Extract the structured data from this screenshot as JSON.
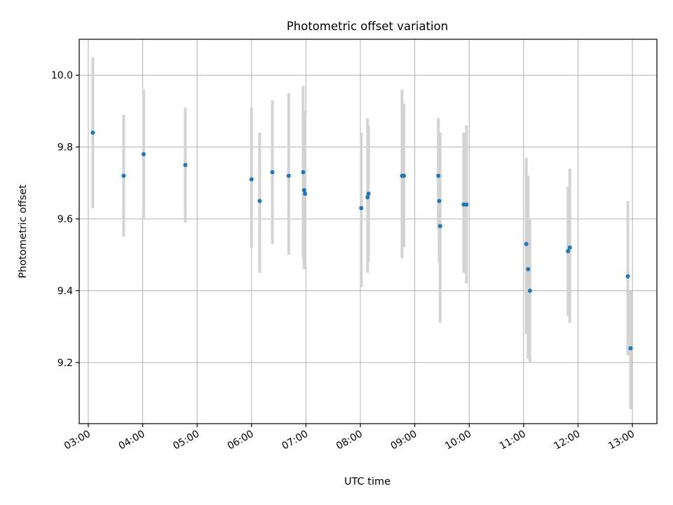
{
  "chart_data": {
    "type": "scatter",
    "title": "Photometric offset variation",
    "xlabel": "UTC time",
    "ylabel": "Photometric offset",
    "xlim": [
      "02:50",
      "13:27"
    ],
    "ylim": [
      9.03,
      10.1
    ],
    "x_ticks": [
      "03:00",
      "04:00",
      "05:00",
      "06:00",
      "07:00",
      "08:00",
      "09:00",
      "10:00",
      "11:00",
      "12:00",
      "13:00"
    ],
    "y_ticks": [
      9.2,
      9.4,
      9.6,
      9.8,
      10.0
    ],
    "y_tick_labels": [
      "9.2",
      "9.4",
      "9.6",
      "9.8",
      "10.0"
    ],
    "grid": true,
    "marker_color": "#1f77b4",
    "errorbar_color": "#d3d3d3",
    "points": [
      {
        "t": "03:05",
        "y": 9.84,
        "lo": 9.63,
        "hi": 10.05
      },
      {
        "t": "03:39",
        "y": 9.72,
        "lo": 9.55,
        "hi": 9.89
      },
      {
        "t": "04:01",
        "y": 9.78,
        "lo": 9.6,
        "hi": 9.96
      },
      {
        "t": "04:47",
        "y": 9.75,
        "lo": 9.59,
        "hi": 9.91
      },
      {
        "t": "06:00",
        "y": 9.71,
        "lo": 9.52,
        "hi": 9.91
      },
      {
        "t": "06:09",
        "y": 9.65,
        "lo": 9.45,
        "hi": 9.84
      },
      {
        "t": "06:23",
        "y": 9.73,
        "lo": 9.53,
        "hi": 9.93
      },
      {
        "t": "06:41",
        "y": 9.72,
        "lo": 9.5,
        "hi": 9.95
      },
      {
        "t": "06:57",
        "y": 9.73,
        "lo": 9.49,
        "hi": 9.97
      },
      {
        "t": "06:58",
        "y": 9.68,
        "lo": 9.46,
        "hi": 9.9
      },
      {
        "t": "06:59",
        "y": 9.67,
        "lo": 9.47,
        "hi": 9.89
      },
      {
        "t": "08:01",
        "y": 9.63,
        "lo": 9.41,
        "hi": 9.84
      },
      {
        "t": "08:08",
        "y": 9.66,
        "lo": 9.45,
        "hi": 9.88
      },
      {
        "t": "08:09",
        "y": 9.67,
        "lo": 9.48,
        "hi": 9.86
      },
      {
        "t": "08:46",
        "y": 9.72,
        "lo": 9.49,
        "hi": 9.96
      },
      {
        "t": "08:48",
        "y": 9.72,
        "lo": 9.52,
        "hi": 9.92
      },
      {
        "t": "09:26",
        "y": 9.72,
        "lo": 9.57,
        "hi": 9.88
      },
      {
        "t": "09:27",
        "y": 9.65,
        "lo": 9.48,
        "hi": 9.83
      },
      {
        "t": "09:28",
        "y": 9.58,
        "lo": 9.31,
        "hi": 9.84
      },
      {
        "t": "09:54",
        "y": 9.64,
        "lo": 9.45,
        "hi": 9.84
      },
      {
        "t": "09:57",
        "y": 9.64,
        "lo": 9.42,
        "hi": 9.86
      },
      {
        "t": "11:03",
        "y": 9.53,
        "lo": 9.28,
        "hi": 9.77
      },
      {
        "t": "11:05",
        "y": 9.46,
        "lo": 9.21,
        "hi": 9.72
      },
      {
        "t": "11:07",
        "y": 9.4,
        "lo": 9.2,
        "hi": 9.6
      },
      {
        "t": "11:49",
        "y": 9.51,
        "lo": 9.33,
        "hi": 9.69
      },
      {
        "t": "11:51",
        "y": 9.52,
        "lo": 9.31,
        "hi": 9.74
      },
      {
        "t": "12:55",
        "y": 9.44,
        "lo": 9.22,
        "hi": 9.65
      },
      {
        "t": "12:58",
        "y": 9.24,
        "lo": 9.07,
        "hi": 9.4
      }
    ]
  }
}
